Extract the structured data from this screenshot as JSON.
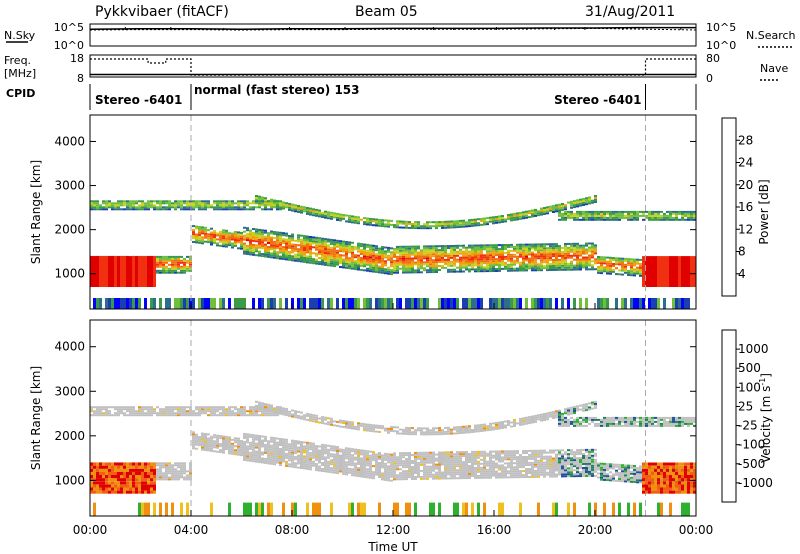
{
  "header": {
    "title": "Pykkvibaer (fitACF)",
    "beam": "Beam 05",
    "date": "31/Aug/2011"
  },
  "chart_data": [
    {
      "type": "line",
      "panel": "noise",
      "left_label": "N.Sky",
      "right_label": "N.Search",
      "left_ticks": [
        "10^5",
        "10^0"
      ],
      "right_ticks": [
        "10^5",
        "10^0"
      ],
      "series": [
        {
          "name": "N.Sky",
          "x": [
            0,
            2,
            4,
            6,
            8,
            10,
            12,
            14,
            16,
            18,
            20,
            22,
            24
          ],
          "values": [
            4.2,
            4.3,
            4.3,
            4.2,
            4.3,
            4.3,
            4.4,
            4.4,
            4.4,
            4.5,
            4.5,
            4.6,
            4.6
          ]
        },
        {
          "name": "N.Search",
          "x": [
            0,
            2,
            4,
            6,
            8,
            10,
            12,
            14,
            16,
            18,
            20,
            22,
            24
          ],
          "values": [
            4.0,
            4.1,
            4.1,
            4.0,
            4.1,
            4.1,
            4.2,
            4.2,
            4.2,
            4.3,
            4.4,
            4.2,
            4.0
          ]
        }
      ]
    },
    {
      "type": "line",
      "panel": "frequency",
      "left_label": "Freq.",
      "left_unit": "[MHz]",
      "left_ticks": [
        "18",
        "8"
      ],
      "right_label": "Nave",
      "right_ticks": [
        "80",
        "0"
      ],
      "series": [
        {
          "name": "Freq.",
          "x": [
            0,
            2.3,
            2.3,
            3.0,
            3.0,
            4.0,
            4.0,
            22.0,
            22.0,
            24
          ],
          "values": [
            17,
            17,
            15,
            15,
            17,
            17,
            9,
            9,
            17,
            17
          ]
        },
        {
          "name": "Nave",
          "x": [
            0,
            24
          ],
          "values": [
            10,
            10
          ]
        }
      ]
    },
    {
      "type": "table",
      "panel": "cpid",
      "label": "CPID",
      "segments": [
        {
          "start": 0,
          "end": 4,
          "text": "Stereo -6401"
        },
        {
          "start": 4,
          "end": 22,
          "text": "normal (fast stereo) 153"
        },
        {
          "start": 22,
          "end": 24,
          "text": "Stereo -6401"
        }
      ]
    },
    {
      "type": "heatmap",
      "panel": "power",
      "ylabel": "Slant Range [km]",
      "yticks": [
        1000,
        2000,
        3000,
        4000
      ],
      "ylim": [
        200,
        4600
      ],
      "xlim": [
        0,
        24
      ],
      "colorbar": {
        "label": "Power [dB]",
        "ticks": [
          "4",
          "8",
          "12",
          "16",
          "20",
          "24",
          "28"
        ],
        "colors": [
          "#0000ff",
          "#1c3fb0",
          "#2c6e8c",
          "#3a9a4a",
          "#6fbe3c",
          "#c8d020",
          "#f0a010",
          "#f07010",
          "#f03010",
          "#e00000"
        ]
      }
    },
    {
      "type": "heatmap",
      "panel": "velocity",
      "ylabel": "Slant Range [km]",
      "yticks": [
        1000,
        2000,
        3000,
        4000
      ],
      "ylim": [
        200,
        4600
      ],
      "xlim": [
        0,
        24
      ],
      "xlabel": "Time UT",
      "xticks": [
        "00:00",
        "04:00",
        "08:00",
        "12:00",
        "16:00",
        "20:00",
        "00:00"
      ],
      "colorbar": {
        "label": "Velocity",
        "unit": "[m s",
        "unit_sup": "-1",
        "unit_close": "]",
        "ticks": [
          "1000",
          "500",
          "100",
          "25",
          "-25",
          "-100",
          "-500",
          "-1000"
        ],
        "colors": [
          "#1030c0",
          "#2050a0",
          "#208060",
          "#30b030",
          "#c0c0c0",
          "#c0c0c0",
          "#f0c020",
          "#f09010",
          "#f06010",
          "#e00000"
        ]
      }
    }
  ]
}
